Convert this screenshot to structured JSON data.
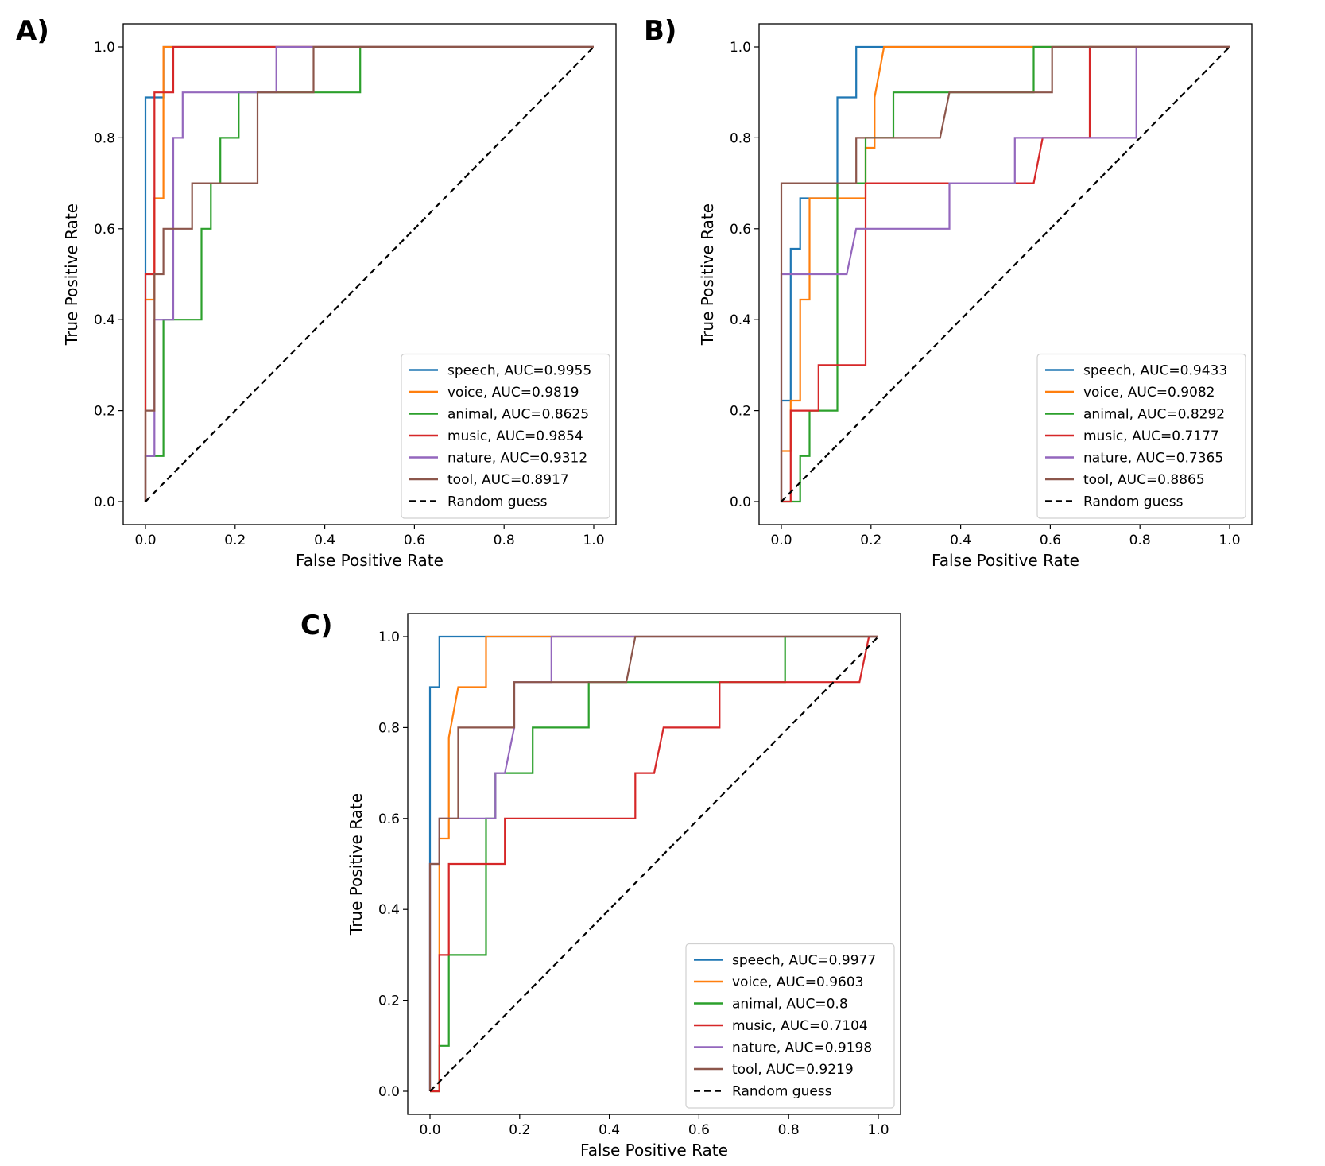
{
  "colors": {
    "speech": "#1f77b4",
    "voice": "#ff7f0e",
    "animal": "#2ca02c",
    "music": "#d62728",
    "nature": "#9467bd",
    "tool": "#8c564b",
    "random": "#000000"
  },
  "chart_data": [
    {
      "panel_label": "A)",
      "type": "line",
      "xlabel": "False Positive Rate",
      "ylabel": "True Positive Rate",
      "xlim": [
        0.0,
        1.0
      ],
      "ylim": [
        0.0,
        1.0
      ],
      "xticks": [
        "0.0",
        "0.2",
        "0.4",
        "0.6",
        "0.8",
        "1.0"
      ],
      "yticks": [
        "0.0",
        "0.2",
        "0.4",
        "0.6",
        "0.8",
        "1.0"
      ],
      "legend_position": "lower-right",
      "series": [
        {
          "key": "speech",
          "name": "speech, AUC=0.9955",
          "points": [
            [
              0,
              0
            ],
            [
              0,
              0.889
            ],
            [
              0.04,
              0.889
            ],
            [
              0.04,
              1
            ],
            [
              1,
              1
            ]
          ]
        },
        {
          "key": "voice",
          "name": "voice, AUC=0.9819",
          "points": [
            [
              0,
              0
            ],
            [
              0,
              0.444
            ],
            [
              0.02,
              0.444
            ],
            [
              0.02,
              0.667
            ],
            [
              0.04,
              0.667
            ],
            [
              0.04,
              1
            ],
            [
              1,
              1
            ]
          ]
        },
        {
          "key": "animal",
          "name": "animal, AUC=0.8625",
          "points": [
            [
              0,
              0
            ],
            [
              0,
              0.1
            ],
            [
              0.04,
              0.1
            ],
            [
              0.04,
              0.4
            ],
            [
              0.125,
              0.4
            ],
            [
              0.125,
              0.6
            ],
            [
              0.146,
              0.6
            ],
            [
              0.146,
              0.7
            ],
            [
              0.167,
              0.7
            ],
            [
              0.167,
              0.8
            ],
            [
              0.208,
              0.8
            ],
            [
              0.208,
              0.9
            ],
            [
              0.479,
              0.9
            ],
            [
              0.479,
              1
            ],
            [
              1,
              1
            ]
          ]
        },
        {
          "key": "music",
          "name": "music, AUC=0.9854",
          "points": [
            [
              0,
              0
            ],
            [
              0,
              0.5
            ],
            [
              0.02,
              0.5
            ],
            [
              0.02,
              0.9
            ],
            [
              0.062,
              0.9
            ],
            [
              0.062,
              1
            ],
            [
              1,
              1
            ]
          ]
        },
        {
          "key": "nature",
          "name": "nature, AUC=0.9312",
          "points": [
            [
              0,
              0
            ],
            [
              0,
              0.1
            ],
            [
              0.02,
              0.1
            ],
            [
              0.02,
              0.4
            ],
            [
              0.062,
              0.4
            ],
            [
              0.062,
              0.8
            ],
            [
              0.083,
              0.8
            ],
            [
              0.083,
              0.9
            ],
            [
              0.292,
              0.9
            ],
            [
              0.292,
              1
            ],
            [
              1,
              1
            ]
          ]
        },
        {
          "key": "tool",
          "name": "tool, AUC=0.8917",
          "points": [
            [
              0,
              0
            ],
            [
              0,
              0.2
            ],
            [
              0.02,
              0.2
            ],
            [
              0.02,
              0.5
            ],
            [
              0.04,
              0.5
            ],
            [
              0.04,
              0.6
            ],
            [
              0.104,
              0.6
            ],
            [
              0.104,
              0.7
            ],
            [
              0.25,
              0.7
            ],
            [
              0.25,
              0.9
            ],
            [
              0.375,
              0.9
            ],
            [
              0.375,
              1
            ],
            [
              1,
              1
            ]
          ]
        },
        {
          "key": "random",
          "name": "Random guess",
          "dashed": true,
          "points": [
            [
              0,
              0
            ],
            [
              1,
              1
            ]
          ]
        }
      ]
    },
    {
      "panel_label": "B)",
      "type": "line",
      "xlabel": "False Positive Rate",
      "ylabel": "True Positive Rate",
      "xlim": [
        0.0,
        1.0
      ],
      "ylim": [
        0.0,
        1.0
      ],
      "xticks": [
        "0.0",
        "0.2",
        "0.4",
        "0.6",
        "0.8",
        "1.0"
      ],
      "yticks": [
        "0.0",
        "0.2",
        "0.4",
        "0.6",
        "0.8",
        "1.0"
      ],
      "legend_position": "lower-right",
      "series": [
        {
          "key": "speech",
          "name": "speech, AUC=0.9433",
          "points": [
            [
              0,
              0
            ],
            [
              0,
              0.222
            ],
            [
              0.021,
              0.222
            ],
            [
              0.021,
              0.556
            ],
            [
              0.042,
              0.556
            ],
            [
              0.042,
              0.667
            ],
            [
              0.125,
              0.667
            ],
            [
              0.125,
              0.889
            ],
            [
              0.167,
              0.889
            ],
            [
              0.167,
              1
            ],
            [
              1,
              1
            ]
          ]
        },
        {
          "key": "voice",
          "name": "voice, AUC=0.9082",
          "points": [
            [
              0,
              0
            ],
            [
              0,
              0.111
            ],
            [
              0.021,
              0.111
            ],
            [
              0.021,
              0.222
            ],
            [
              0.042,
              0.222
            ],
            [
              0.042,
              0.444
            ],
            [
              0.063,
              0.444
            ],
            [
              0.063,
              0.667
            ],
            [
              0.188,
              0.667
            ],
            [
              0.188,
              0.778
            ],
            [
              0.208,
              0.778
            ],
            [
              0.208,
              0.889
            ],
            [
              0.229,
              1
            ],
            [
              1,
              1
            ]
          ]
        },
        {
          "key": "animal",
          "name": "animal, AUC=0.8292",
          "points": [
            [
              0,
              0
            ],
            [
              0.042,
              0
            ],
            [
              0.042,
              0.1
            ],
            [
              0.063,
              0.1
            ],
            [
              0.063,
              0.2
            ],
            [
              0.125,
              0.2
            ],
            [
              0.125,
              0.7
            ],
            [
              0.188,
              0.7
            ],
            [
              0.188,
              0.8
            ],
            [
              0.25,
              0.8
            ],
            [
              0.25,
              0.9
            ],
            [
              0.563,
              0.9
            ],
            [
              0.563,
              1
            ],
            [
              1,
              1
            ]
          ]
        },
        {
          "key": "music",
          "name": "music, AUC=0.7177",
          "points": [
            [
              0,
              0
            ],
            [
              0.021,
              0
            ],
            [
              0.021,
              0.2
            ],
            [
              0.083,
              0.2
            ],
            [
              0.083,
              0.3
            ],
            [
              0.188,
              0.3
            ],
            [
              0.188,
              0.7
            ],
            [
              0.563,
              0.7
            ],
            [
              0.583,
              0.8
            ],
            [
              0.688,
              0.8
            ],
            [
              0.688,
              1
            ],
            [
              1,
              1
            ]
          ]
        },
        {
          "key": "nature",
          "name": "nature, AUC=0.7365",
          "points": [
            [
              0,
              0
            ],
            [
              0,
              0.5
            ],
            [
              0.146,
              0.5
            ],
            [
              0.167,
              0.6
            ],
            [
              0.375,
              0.6
            ],
            [
              0.375,
              0.7
            ],
            [
              0.521,
              0.7
            ],
            [
              0.521,
              0.8
            ],
            [
              0.792,
              0.8
            ],
            [
              0.792,
              1
            ],
            [
              1,
              1
            ]
          ]
        },
        {
          "key": "tool",
          "name": "tool, AUC=0.8865",
          "points": [
            [
              0,
              0
            ],
            [
              0,
              0.7
            ],
            [
              0.167,
              0.7
            ],
            [
              0.167,
              0.8
            ],
            [
              0.354,
              0.8
            ],
            [
              0.375,
              0.9
            ],
            [
              0.604,
              0.9
            ],
            [
              0.604,
              1
            ],
            [
              1,
              1
            ]
          ]
        },
        {
          "key": "random",
          "name": "Random guess",
          "dashed": true,
          "points": [
            [
              0,
              0
            ],
            [
              1,
              1
            ]
          ]
        }
      ]
    },
    {
      "panel_label": "C)",
      "type": "line",
      "xlabel": "False Positive Rate",
      "ylabel": "True Positive Rate",
      "xlim": [
        0.0,
        1.0
      ],
      "ylim": [
        0.0,
        1.0
      ],
      "xticks": [
        "0.0",
        "0.2",
        "0.4",
        "0.6",
        "0.8",
        "1.0"
      ],
      "yticks": [
        "0.0",
        "0.2",
        "0.4",
        "0.6",
        "0.8",
        "1.0"
      ],
      "legend_position": "lower-right",
      "series": [
        {
          "key": "speech",
          "name": "speech, AUC=0.9977",
          "points": [
            [
              0,
              0
            ],
            [
              0,
              0.889
            ],
            [
              0.021,
              0.889
            ],
            [
              0.021,
              1
            ],
            [
              1,
              1
            ]
          ]
        },
        {
          "key": "voice",
          "name": "voice, AUC=0.9603",
          "points": [
            [
              0,
              0
            ],
            [
              0.021,
              0
            ],
            [
              0.021,
              0.556
            ],
            [
              0.042,
              0.556
            ],
            [
              0.042,
              0.778
            ],
            [
              0.063,
              0.889
            ],
            [
              0.125,
              0.889
            ],
            [
              0.125,
              1
            ],
            [
              1,
              1
            ]
          ]
        },
        {
          "key": "animal",
          "name": "animal, AUC=0.8",
          "points": [
            [
              0,
              0
            ],
            [
              0.021,
              0
            ],
            [
              0.021,
              0.1
            ],
            [
              0.042,
              0.1
            ],
            [
              0.042,
              0.3
            ],
            [
              0.125,
              0.3
            ],
            [
              0.125,
              0.6
            ],
            [
              0.146,
              0.6
            ],
            [
              0.146,
              0.7
            ],
            [
              0.229,
              0.7
            ],
            [
              0.229,
              0.8
            ],
            [
              0.354,
              0.8
            ],
            [
              0.354,
              0.9
            ],
            [
              0.792,
              0.9
            ],
            [
              0.792,
              1
            ],
            [
              1,
              1
            ]
          ]
        },
        {
          "key": "music",
          "name": "music, AUC=0.7104",
          "points": [
            [
              0,
              0
            ],
            [
              0.021,
              0
            ],
            [
              0.021,
              0.3
            ],
            [
              0.042,
              0.3
            ],
            [
              0.042,
              0.5
            ],
            [
              0.167,
              0.5
            ],
            [
              0.167,
              0.6
            ],
            [
              0.458,
              0.6
            ],
            [
              0.458,
              0.7
            ],
            [
              0.5,
              0.7
            ],
            [
              0.521,
              0.8
            ],
            [
              0.646,
              0.8
            ],
            [
              0.646,
              0.9
            ],
            [
              0.958,
              0.9
            ],
            [
              0.979,
              1
            ],
            [
              1,
              1
            ]
          ]
        },
        {
          "key": "nature",
          "name": "nature, AUC=0.9198",
          "points": [
            [
              0,
              0
            ],
            [
              0,
              0.5
            ],
            [
              0.021,
              0.5
            ],
            [
              0.021,
              0.6
            ],
            [
              0.146,
              0.6
            ],
            [
              0.146,
              0.7
            ],
            [
              0.167,
              0.7
            ],
            [
              0.188,
              0.8
            ],
            [
              0.188,
              0.9
            ],
            [
              0.271,
              0.9
            ],
            [
              0.271,
              1
            ],
            [
              1,
              1
            ]
          ]
        },
        {
          "key": "tool",
          "name": "tool, AUC=0.9219",
          "points": [
            [
              0,
              0
            ],
            [
              0,
              0.5
            ],
            [
              0.021,
              0.5
            ],
            [
              0.021,
              0.6
            ],
            [
              0.063,
              0.6
            ],
            [
              0.063,
              0.8
            ],
            [
              0.188,
              0.8
            ],
            [
              0.188,
              0.9
            ],
            [
              0.438,
              0.9
            ],
            [
              0.458,
              1
            ],
            [
              1,
              1
            ]
          ]
        },
        {
          "key": "random",
          "name": "Random guess",
          "dashed": true,
          "points": [
            [
              0,
              0
            ],
            [
              1,
              1
            ]
          ]
        }
      ]
    }
  ]
}
